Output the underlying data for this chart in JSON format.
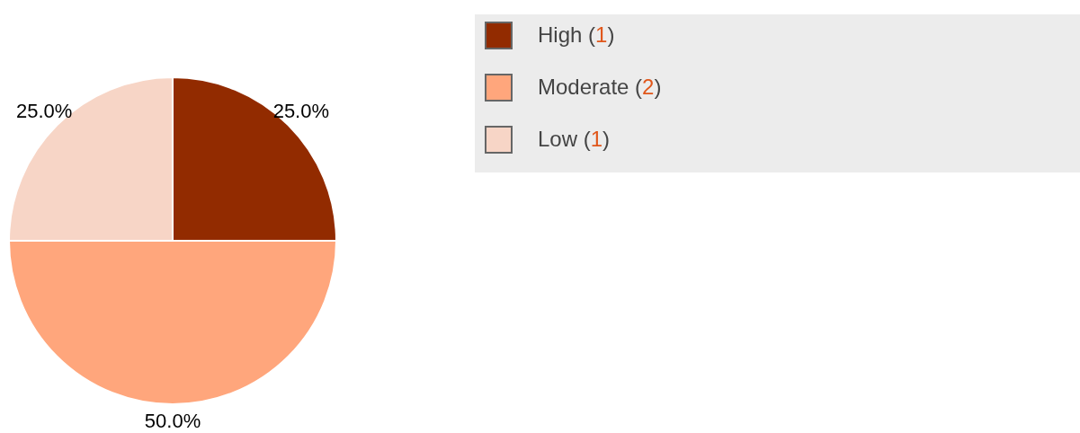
{
  "chart_data": {
    "type": "pie",
    "categories": [
      "High (1)",
      "Moderate (2)",
      "Low (1)"
    ],
    "values": [
      25,
      50,
      25
    ],
    "colors": [
      "#922b00",
      "#ffa67c",
      "#f7d5c6"
    ],
    "value_labels": [
      "25.0%",
      "50.0%",
      "25.0%"
    ],
    "legend": "top right"
  }
}
